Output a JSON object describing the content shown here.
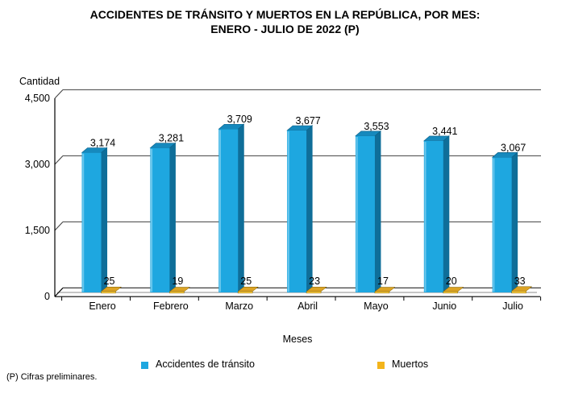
{
  "title": {
    "line1": "ACCIDENTES DE TRÁNSITO Y MUERTOS EN LA REPÚBLICA, POR MES:",
    "line2": "ENERO - JULIO DE 2022 (P)"
  },
  "footnote": "(P) Cifras preliminares.",
  "colors": {
    "accidents_front": "#1EA7E0",
    "accidents_top": "#1689BD",
    "accidents_side": "#0F6E99",
    "accidents_highlight": "#72CBEE",
    "deaths_front": "#F8C93E",
    "deaths_top": "#DCA324",
    "gridline": "#3f3f3f",
    "floor_front_edge": "#8c8c8c",
    "axis": "#000000"
  },
  "chart_data": {
    "type": "bar",
    "style": "3d-column",
    "title": "ACCIDENTES DE TRÁNSITO Y MUERTOS EN LA REPÚBLICA, POR MES: ENERO - JULIO DE 2022 (P)",
    "categories": [
      "Enero",
      "Febrero",
      "Marzo",
      "Abril",
      "Mayo",
      "Junio",
      "Julio"
    ],
    "series": [
      {
        "name": "Accidentes de tránsito",
        "color": "#1EA7E0",
        "values": [
          3174,
          3281,
          3709,
          3677,
          3553,
          3441,
          3067
        ]
      },
      {
        "name": "Muertos",
        "color": "#F3B41B",
        "values": [
          25,
          19,
          25,
          23,
          17,
          20,
          33
        ]
      }
    ],
    "xlabel": "Meses",
    "ylabel": "Cantidad",
    "ylim": [
      0,
      4500
    ],
    "yticks": [
      0,
      1500,
      3000,
      4500
    ],
    "ytick_labels": [
      "0",
      "1,500",
      "3,000",
      "4,500"
    ],
    "grid": true,
    "legend_position": "bottom"
  }
}
